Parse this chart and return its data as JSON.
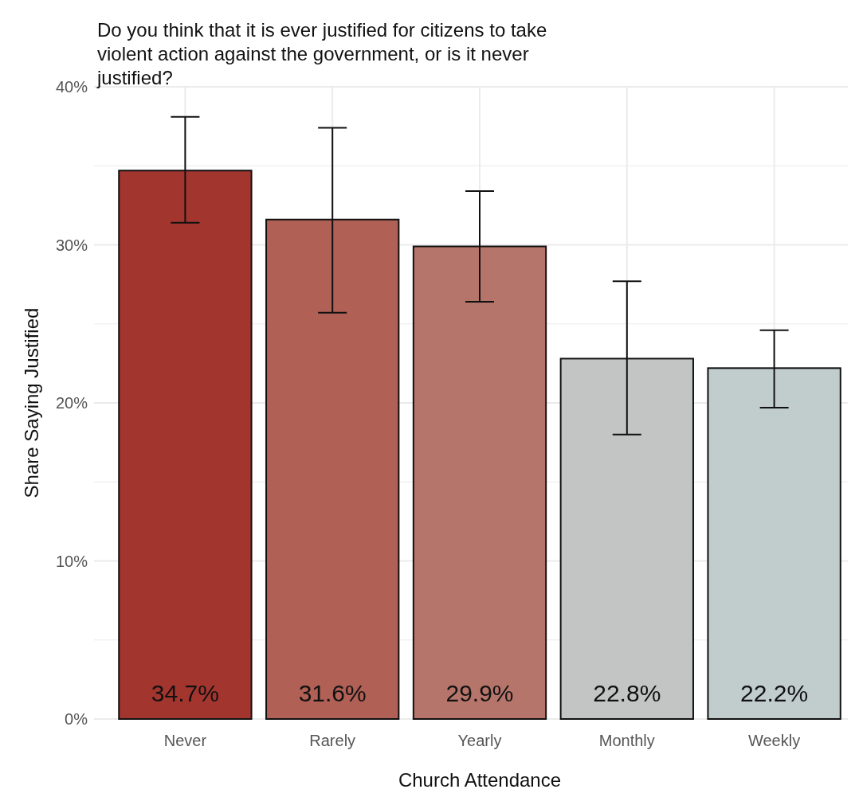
{
  "chart_data": {
    "type": "bar",
    "title": "Do you think that it is ever justified for citizens to take violent action against the government, or is it never justified?",
    "xlabel": "Church Attendance",
    "ylabel": "Share Saying Justified",
    "categories": [
      "Never",
      "Rarely",
      "Yearly",
      "Monthly",
      "Weekly"
    ],
    "values": [
      34.7,
      31.6,
      29.9,
      22.8,
      22.2
    ],
    "colors": [
      "#a3352f",
      "#b06055",
      "#b6756b",
      "#c3c5c4",
      "#c1cccd"
    ],
    "errors": [
      [
        31.4,
        38.1
      ],
      [
        25.7,
        37.4
      ],
      [
        26.4,
        33.4
      ],
      [
        18.0,
        27.7
      ],
      [
        19.7,
        24.6
      ]
    ],
    "value_labels": [
      "34.7%",
      "31.6%",
      "29.9%",
      "22.8%",
      "22.2%"
    ],
    "ylim": [
      0,
      40
    ],
    "yticks": [
      {
        "value": 0,
        "label": "0%"
      },
      {
        "value": 5,
        "label": null
      },
      {
        "value": 10,
        "label": "10%"
      },
      {
        "value": 15,
        "label": null
      },
      {
        "value": 20,
        "label": "20%"
      },
      {
        "value": 25,
        "label": null
      },
      {
        "value": 30,
        "label": "30%"
      },
      {
        "value": 35,
        "label": null
      },
      {
        "value": 40,
        "label": "40%"
      }
    ],
    "grid": true
  }
}
